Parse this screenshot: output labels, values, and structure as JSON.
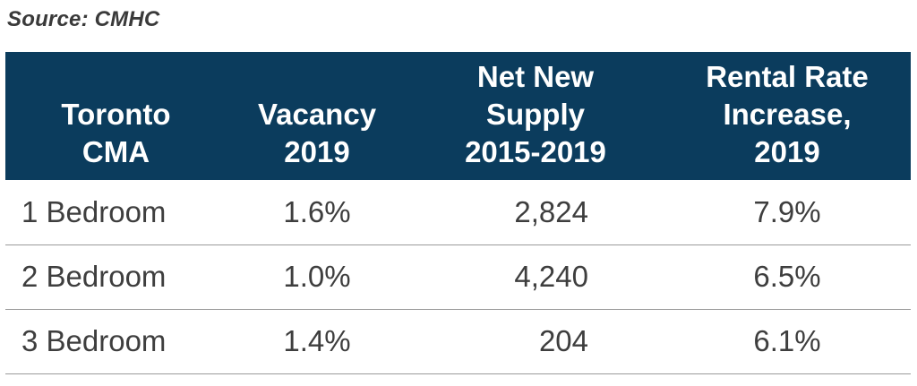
{
  "source": "Source: CMHC",
  "table": {
    "headers": [
      "Toronto CMA",
      "Vacancy 2019",
      "Net New Supply 2015-2019",
      "Rental Rate Increase, 2019"
    ],
    "header_lines": [
      [
        "Toronto",
        "CMA"
      ],
      [
        "Vacancy",
        "2019"
      ],
      [
        "Net New",
        "Supply",
        "2015-2019"
      ],
      [
        "Rental Rate",
        "Increase,",
        "2019"
      ]
    ],
    "rows": [
      [
        "1 Bedroom",
        "1.6%",
        "2,824",
        "7.9%"
      ],
      [
        "2 Bedroom",
        "1.0%",
        "4,240",
        "6.5%"
      ],
      [
        "3 Bedroom",
        "1.4%",
        "204",
        "6.1%"
      ]
    ]
  },
  "colors": {
    "header_background": "#0b3c5d",
    "header_text": "#ffffff",
    "row_divider": "#9a9a9a"
  }
}
